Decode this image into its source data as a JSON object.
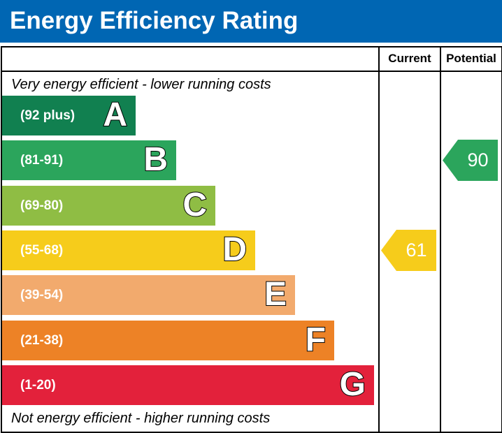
{
  "title": "Energy Efficiency Rating",
  "columns": {
    "current": "Current",
    "potential": "Potential"
  },
  "captions": {
    "top": "Very energy efficient - lower running costs",
    "bottom": "Not energy efficient - higher running costs"
  },
  "colors": {
    "title_bar": "#0066b3",
    "frame": "#000000"
  },
  "chart_data": {
    "type": "bar",
    "title": "Energy Efficiency Rating",
    "categories": [
      "A",
      "B",
      "C",
      "D",
      "E",
      "F",
      "G"
    ],
    "bands": [
      {
        "letter": "A",
        "range": "(92 plus)",
        "min": 92,
        "max": 100,
        "color": "#118050"
      },
      {
        "letter": "B",
        "range": "(81-91)",
        "min": 81,
        "max": 91,
        "color": "#2ba55c"
      },
      {
        "letter": "C",
        "range": "(69-80)",
        "min": 69,
        "max": 80,
        "color": "#8fbd44"
      },
      {
        "letter": "D",
        "range": "(55-68)",
        "min": 55,
        "max": 68,
        "color": "#f6cc1b"
      },
      {
        "letter": "E",
        "range": "(39-54)",
        "min": 39,
        "max": 54,
        "color": "#f2aa6d"
      },
      {
        "letter": "F",
        "range": "(21-38)",
        "min": 21,
        "max": 38,
        "color": "#ed8226"
      },
      {
        "letter": "G",
        "range": "(1-20)",
        "min": 1,
        "max": 20,
        "color": "#e3213b"
      }
    ],
    "current": {
      "value": 61,
      "band": "D",
      "color": "#f6cc1b"
    },
    "potential": {
      "value": 90,
      "band": "B",
      "color": "#2ba55c"
    }
  }
}
